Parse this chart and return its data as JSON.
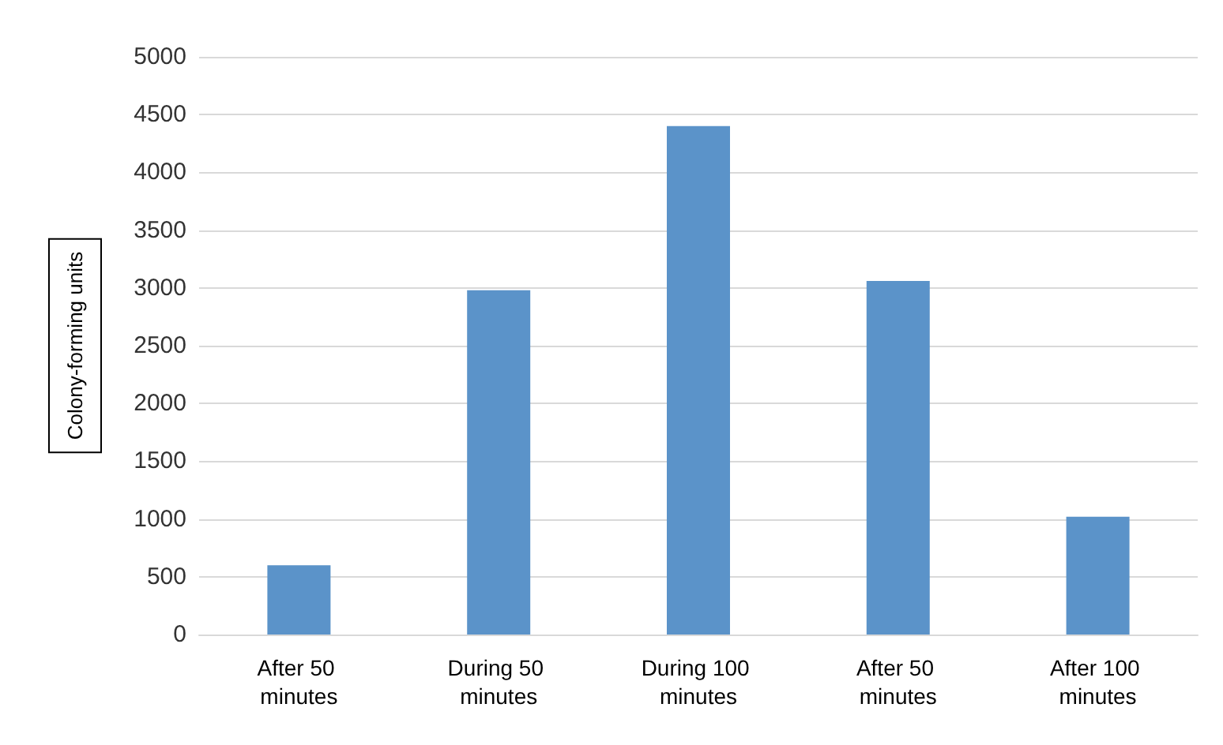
{
  "chart_data": {
    "type": "bar",
    "ylabel": "Colony-forming units",
    "categories": [
      "After 50 minutes",
      "During 50 minutes",
      "During 100 minutes",
      "After 50 minutes",
      "After 100 minutes"
    ],
    "values": [
      600,
      2980,
      4400,
      3060,
      1020
    ],
    "color": "#5b93c9",
    "ylim": [
      0,
      5000
    ],
    "yticks": [
      0,
      500,
      1000,
      1500,
      2000,
      2500,
      3000,
      3500,
      4000,
      4500,
      5000
    ],
    "grid": "y"
  }
}
